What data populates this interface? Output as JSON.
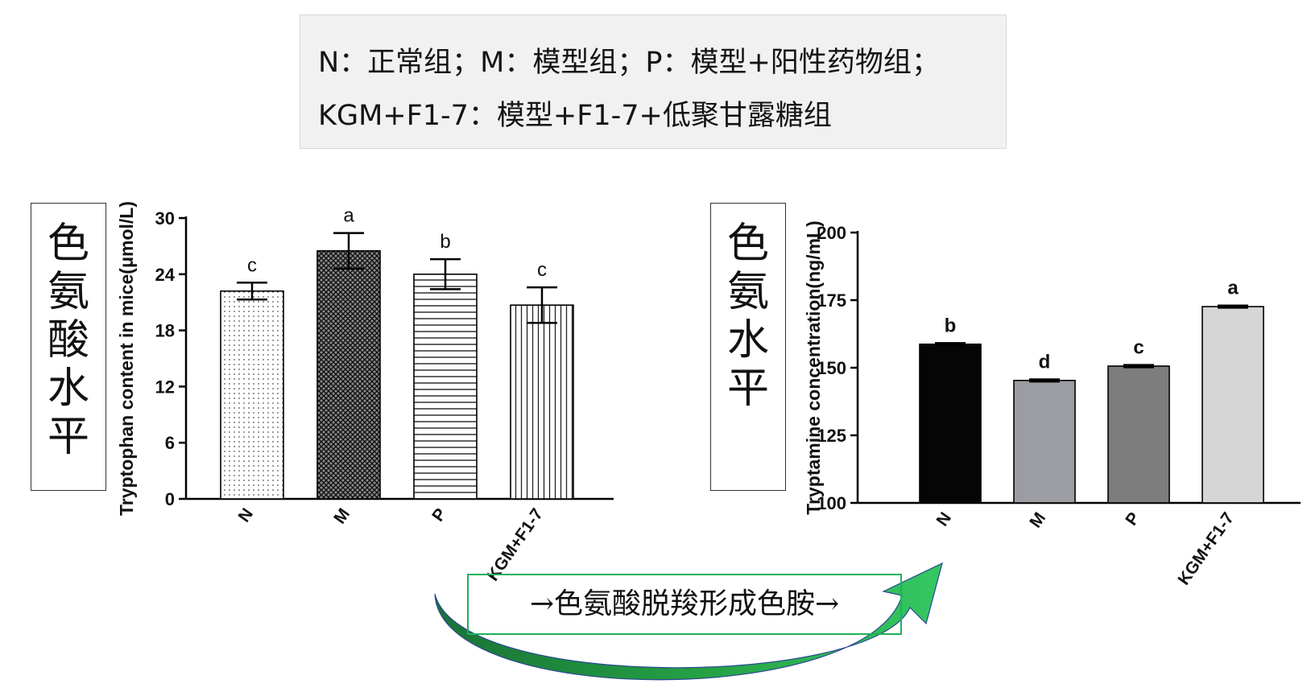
{
  "legend": {
    "line1": "N：正常组；M：模型组；P：模型+阳性药物组；",
    "line2": "KGM+F1-7：模型+F1-7+低聚甘露糖组"
  },
  "side_labels": {
    "left": [
      "色",
      "氨",
      "酸",
      "水",
      "平"
    ],
    "right": [
      "色",
      "氨",
      "水",
      "平"
    ]
  },
  "flow_label": "→色氨酸脱羧形成色胺→",
  "colors": {
    "arrow_green": "#1a9a3a",
    "flow_box_border": "#1fb15c",
    "axis": "#000000"
  },
  "chart_data": [
    {
      "type": "bar",
      "ylabel": "Tryptophan content in mice(μmol/L)",
      "categories": [
        "N",
        "M",
        "P",
        "KGM+F1-7"
      ],
      "values": [
        22.2,
        26.5,
        24.0,
        20.7
      ],
      "errors": [
        0.9,
        1.9,
        1.6,
        1.9
      ],
      "significance": [
        "c",
        "a",
        "b",
        "c"
      ],
      "patterns": [
        "dots",
        "crosshatch",
        "horizontal-lines",
        "vertical-lines"
      ],
      "ylim": [
        0,
        30
      ],
      "yticks": [
        0,
        6,
        12,
        18,
        24,
        30
      ]
    },
    {
      "type": "bar",
      "ylabel": "Tryptamine concentration(ng/mL)",
      "categories": [
        "N",
        "M",
        "P",
        "KGM+F1-7"
      ],
      "values": [
        158.7,
        145.3,
        150.6,
        172.6
      ],
      "errors": [
        0.4,
        0.4,
        0.4,
        0.4
      ],
      "significance": [
        "b",
        "d",
        "c",
        "a"
      ],
      "colors": [
        "#050505",
        "#9c9ca3",
        "#7d7d7d",
        "#d6d6d6"
      ],
      "ylim": [
        100,
        200
      ],
      "yticks": [
        100,
        125,
        150,
        175,
        200
      ]
    }
  ]
}
